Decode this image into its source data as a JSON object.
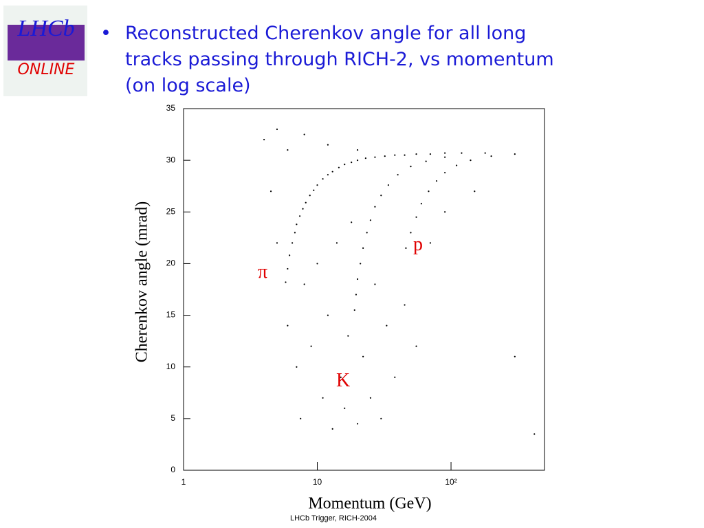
{
  "logo": {
    "top": "LHCb",
    "bottom": "ONLINE"
  },
  "slide": {
    "bullet": "•",
    "lines": [
      "Reconstructed Cherenkov angle for all long",
      "tracks passing through RICH-2, vs momentum",
      "(on log scale)"
    ],
    "footer": "LHCb Trigger, RICH-2004"
  },
  "chart_data": {
    "type": "scatter",
    "xlabel": "Momentum  (GeV)",
    "ylabel": "Cherenkov angle  (mrad)",
    "xscale": "log",
    "xlim": [
      1,
      500
    ],
    "ylim": [
      0,
      35
    ],
    "xticks": [
      1,
      10,
      {
        "value": 100,
        "label": "10²"
      }
    ],
    "yticks": [
      0,
      5,
      10,
      15,
      20,
      25,
      30,
      35
    ],
    "annotations": [
      "π",
      "K",
      "p"
    ],
    "color": "#000000",
    "x": [
      5.8,
      6.0,
      6.2,
      6.5,
      6.8,
      7.0,
      7.4,
      7.8,
      8.2,
      8.8,
      9.4,
      10,
      11,
      12,
      13,
      14.5,
      16,
      18,
      20,
      23,
      27,
      32,
      38,
      45,
      55,
      70,
      90,
      120,
      180,
      300,
      19,
      19.5,
      20,
      21,
      22,
      23.5,
      25,
      27,
      30,
      34,
      40,
      50,
      65,
      90,
      46,
      50,
      55,
      60,
      68,
      78,
      90,
      110,
      140,
      200,
      4,
      5,
      6,
      8,
      12,
      20,
      4.5,
      5,
      6,
      7,
      7.5,
      8,
      9,
      10,
      11,
      12,
      13,
      14,
      15,
      16,
      17,
      18,
      20,
      22,
      25,
      27,
      30,
      33,
      38,
      45,
      55,
      70,
      90,
      150,
      300,
      420
    ],
    "y": [
      18.2,
      19.5,
      20.8,
      22.0,
      23.0,
      23.8,
      24.6,
      25.3,
      25.9,
      26.6,
      27.1,
      27.6,
      28.2,
      28.6,
      28.9,
      29.3,
      29.6,
      29.8,
      30.0,
      30.2,
      30.3,
      30.4,
      30.5,
      30.5,
      30.6,
      30.6,
      30.7,
      30.7,
      30.7,
      30.6,
      15.5,
      17,
      18.5,
      20,
      21.5,
      23,
      24.2,
      25.5,
      26.6,
      27.6,
      28.6,
      29.4,
      29.9,
      30.3,
      21.5,
      23,
      24.5,
      25.8,
      27,
      28,
      28.8,
      29.5,
      30,
      30.4,
      32,
      33,
      31,
      32.5,
      31.5,
      31,
      27,
      22,
      14,
      10,
      5,
      18,
      12,
      20,
      7,
      15,
      4,
      22,
      9,
      6,
      13,
      24,
      4.5,
      11,
      7,
      18,
      5,
      14,
      9,
      16,
      12,
      22,
      25,
      27,
      11,
      3.5
    ]
  }
}
